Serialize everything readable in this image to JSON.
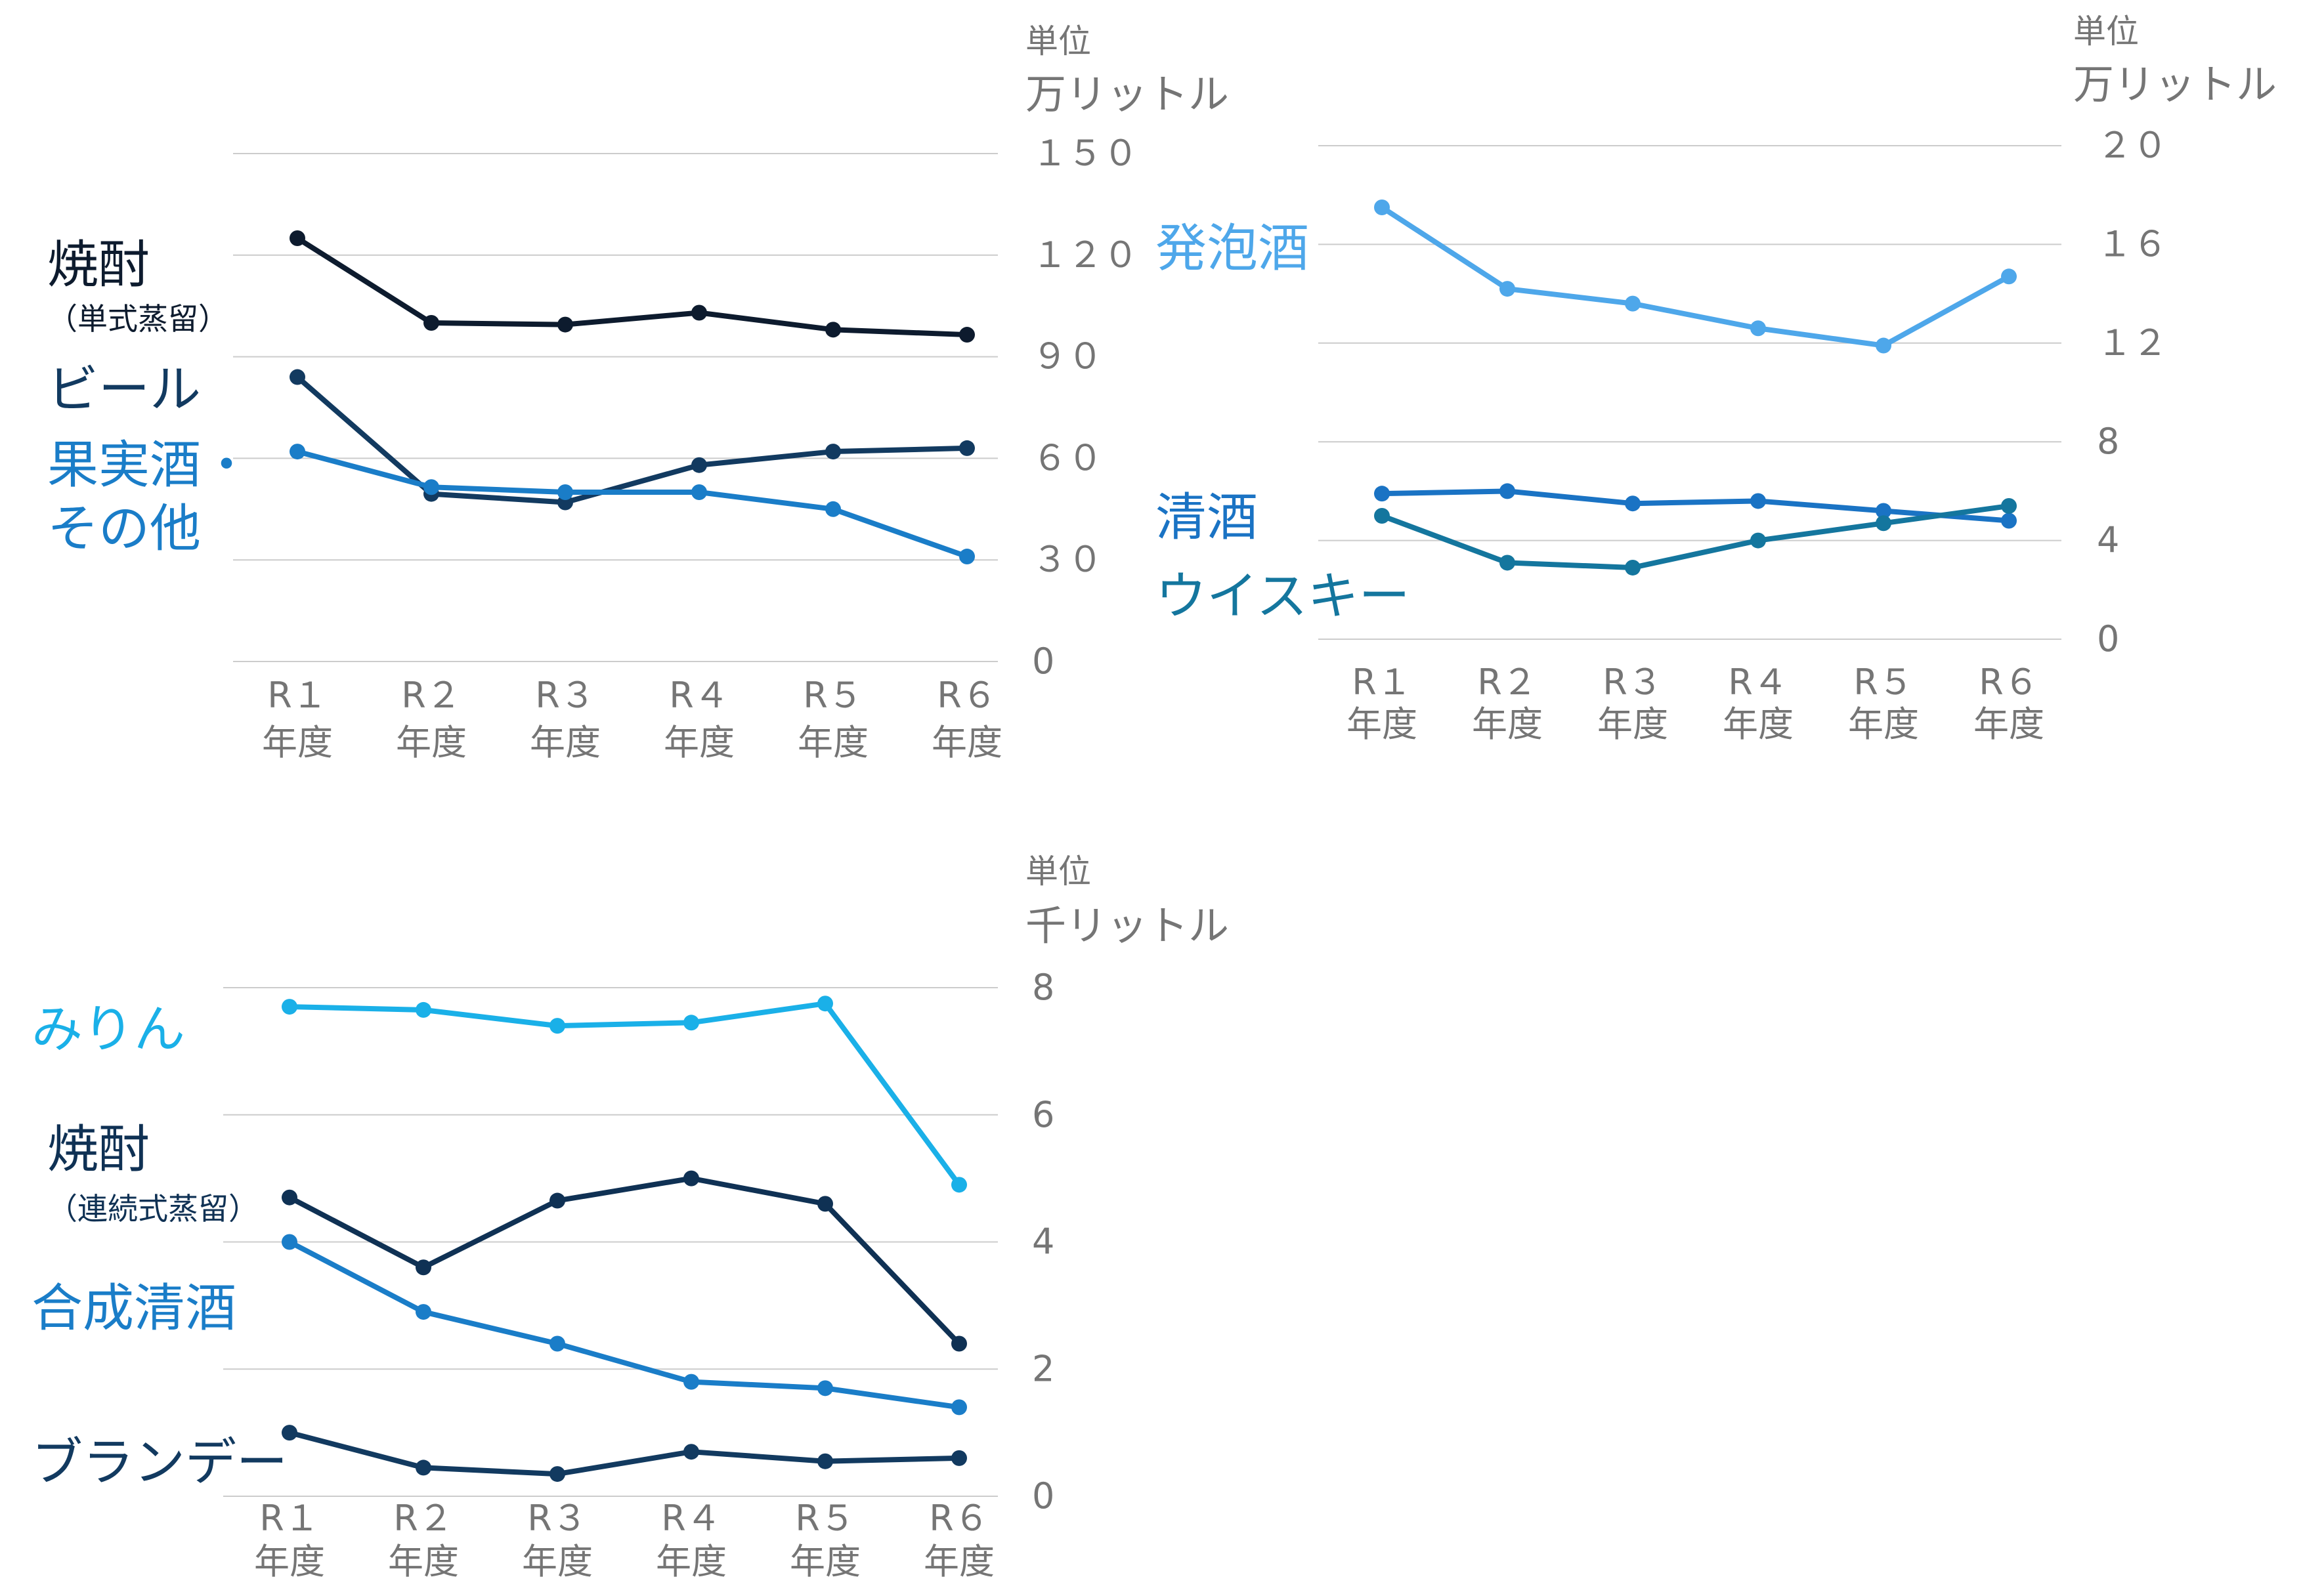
{
  "chart_data": [
    {
      "type": "line",
      "unit_label": "単位",
      "unit": "万リットル",
      "categories": [
        {
          "top": "R１",
          "bottom": "年度"
        },
        {
          "top": "R２",
          "bottom": "年度"
        },
        {
          "top": "R３",
          "bottom": "年度"
        },
        {
          "top": "R４",
          "bottom": "年度"
        },
        {
          "top": "R５",
          "bottom": "年度"
        },
        {
          "top": "R６",
          "bottom": "年度"
        }
      ],
      "ylim": [
        0,
        150
      ],
      "y_ticks": [
        0,
        30,
        60,
        90,
        120,
        150
      ],
      "y_tick_labels": [
        "0",
        "３０",
        "６０",
        "９０",
        "１２０",
        "１５０"
      ],
      "grid": true,
      "series": [
        {
          "name": "焼酎",
          "sub": "（単式蒸留）",
          "color": "#0d1b2e",
          "values": [
            125,
            100,
            99.5,
            103,
            98,
            96.5
          ]
        },
        {
          "name": "ビール",
          "color": "#123a60",
          "values": [
            84,
            49.5,
            47,
            58,
            62,
            63
          ]
        },
        {
          "name": "果実酒・",
          "name2": "その他",
          "color": "#1a7dc8",
          "values": [
            62,
            51.5,
            50,
            50,
            45,
            31
          ]
        }
      ]
    },
    {
      "type": "line",
      "unit_label": "単位",
      "unit": "万リットル",
      "categories": [
        {
          "top": "R１",
          "bottom": "年度"
        },
        {
          "top": "R２",
          "bottom": "年度"
        },
        {
          "top": "R３",
          "bottom": "年度"
        },
        {
          "top": "R４",
          "bottom": "年度"
        },
        {
          "top": "R５",
          "bottom": "年度"
        },
        {
          "top": "R６",
          "bottom": "年度"
        }
      ],
      "ylim": [
        0,
        20
      ],
      "y_ticks": [
        0,
        4,
        8,
        12,
        16,
        20
      ],
      "y_tick_labels": [
        "0",
        "4",
        "8",
        "１２",
        "１６",
        "２０"
      ],
      "grid": true,
      "series": [
        {
          "name": "発泡酒",
          "color": "#4ea7ea",
          "values": [
            17.5,
            14.2,
            13.6,
            12.6,
            11.9,
            14.7
          ]
        },
        {
          "name": "清酒",
          "color": "#1a73c4",
          "values": [
            5.9,
            6.0,
            5.5,
            5.6,
            5.2,
            4.8
          ]
        },
        {
          "name": "ウイスキー",
          "color": "#14769e",
          "values": [
            5.0,
            3.1,
            2.9,
            4.0,
            4.7,
            5.4
          ]
        }
      ]
    },
    {
      "type": "line",
      "unit_label": "単位",
      "unit": "千リットル",
      "categories": [
        {
          "top": "R１",
          "bottom": "年度"
        },
        {
          "top": "R２",
          "bottom": "年度"
        },
        {
          "top": "R３",
          "bottom": "年度"
        },
        {
          "top": "R４",
          "bottom": "年度"
        },
        {
          "top": "R５",
          "bottom": "年度"
        },
        {
          "top": "R６",
          "bottom": "年度"
        }
      ],
      "ylim": [
        0,
        8
      ],
      "y_ticks": [
        0,
        2,
        4,
        6,
        8
      ],
      "y_tick_labels": [
        "0",
        "2",
        "4",
        "6",
        "8"
      ],
      "grid": true,
      "series": [
        {
          "name": "みりん",
          "color": "#1ab0e8",
          "values": [
            7.7,
            7.65,
            7.4,
            7.45,
            7.75,
            4.9
          ]
        },
        {
          "name": "焼酎",
          "sub": "（連続式蒸留）",
          "color": "#0f3154",
          "values": [
            4.7,
            3.6,
            4.65,
            5.0,
            4.6,
            2.4
          ]
        },
        {
          "name": "合成清酒",
          "color": "#1a7dc8",
          "values": [
            4.0,
            2.9,
            2.4,
            1.8,
            1.7,
            1.4
          ]
        },
        {
          "name": "ブランデー",
          "color": "#123a60",
          "values": [
            1.0,
            0.45,
            0.35,
            0.7,
            0.55,
            0.6
          ]
        }
      ]
    }
  ]
}
